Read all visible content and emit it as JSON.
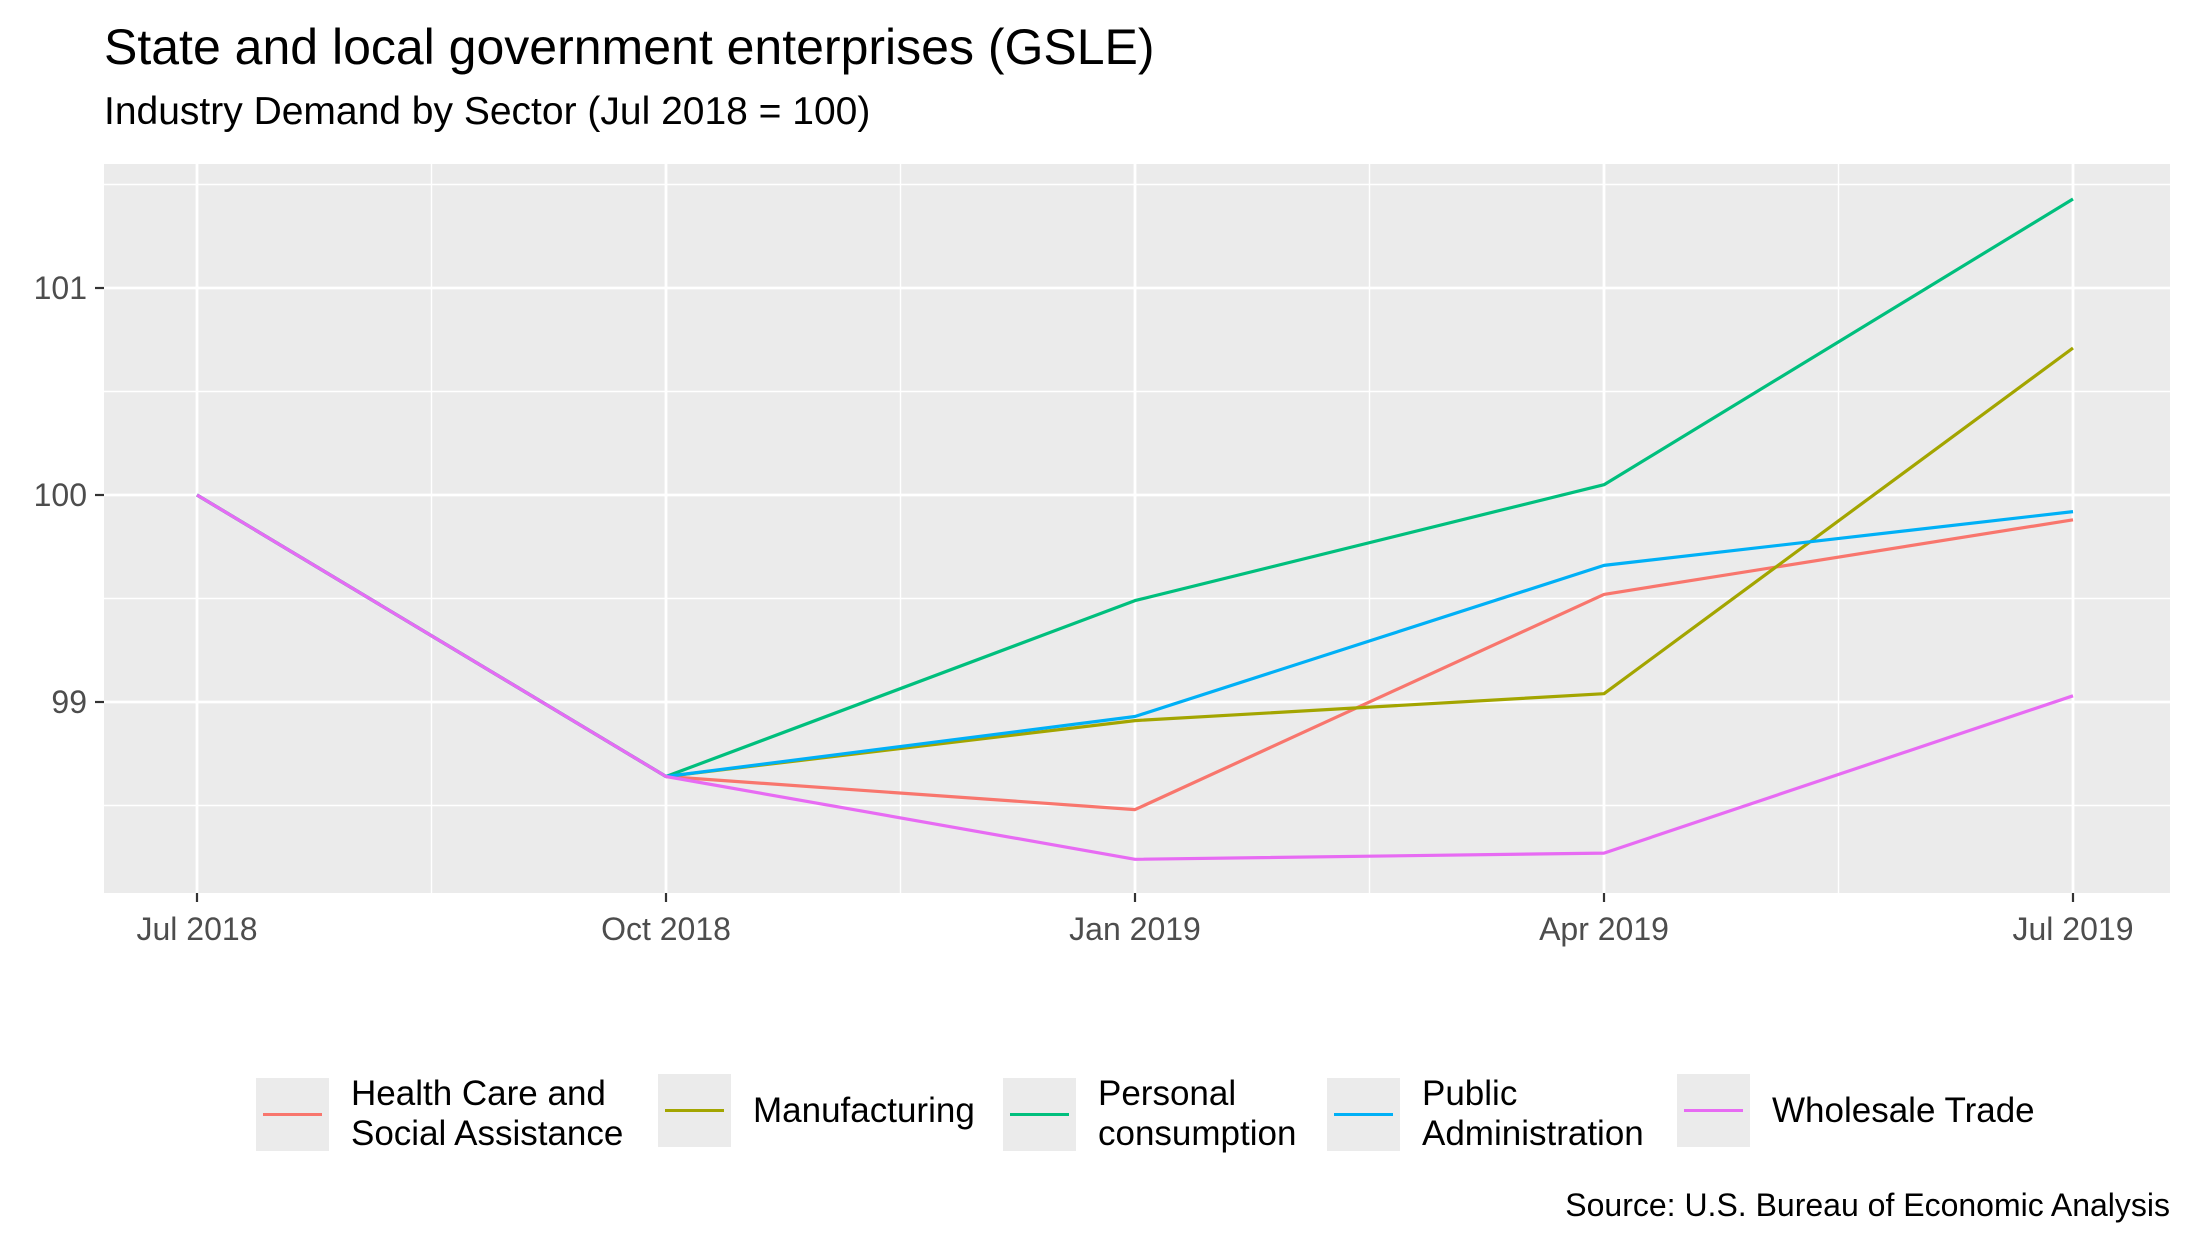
{
  "chart_data": {
    "type": "line",
    "title": "State and local government enterprises (GSLE)",
    "subtitle": "Industry Demand by Sector (Jul 2018 = 100)",
    "xlabel": "",
    "ylabel": "",
    "x": [
      "2018-07",
      "2018-10",
      "2019-01",
      "2019-04",
      "2019-07"
    ],
    "x_tick_labels": [
      "Jul 2018",
      "Oct 2018",
      "Jan 2019",
      "Apr 2019",
      "Jul 2019"
    ],
    "y_ticks": [
      99,
      100,
      101
    ],
    "ylim": [
      98.1,
      101.6
    ],
    "grid": true,
    "legend_position": "bottom",
    "series": [
      {
        "name": "Health Care and\nSocial Assistance",
        "color": "#F8766D",
        "values": [
          100,
          98.64,
          98.48,
          99.52,
          99.88
        ]
      },
      {
        "name": "Manufacturing",
        "color": "#A3A500",
        "values": [
          100,
          98.64,
          98.91,
          99.04,
          100.71
        ]
      },
      {
        "name": "Personal\nconsumption",
        "color": "#00BF7D",
        "values": [
          100,
          98.64,
          99.49,
          100.05,
          101.43
        ]
      },
      {
        "name": "Public\nAdministration",
        "color": "#00B0F6",
        "values": [
          100,
          98.64,
          98.93,
          99.66,
          99.92
        ]
      },
      {
        "name": "Wholesale Trade",
        "color": "#E76BF3",
        "values": [
          100,
          98.64,
          98.24,
          98.27,
          99.03
        ]
      }
    ],
    "caption": "Source: U.S. Bureau of Economic Analysis"
  }
}
